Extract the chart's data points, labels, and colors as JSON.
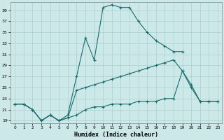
{
  "xlabel": "Humidex (Indice chaleur)",
  "bg_color": "#cce8e8",
  "grid_color": "#aacfcf",
  "line_color": "#1a6b6b",
  "ylim": [
    18.5,
    40.5
  ],
  "xlim": [
    -0.5,
    23.5
  ],
  "yticks": [
    19,
    21,
    23,
    25,
    27,
    29,
    31,
    33,
    35,
    37,
    39
  ],
  "xticks": [
    0,
    1,
    2,
    3,
    4,
    5,
    6,
    7,
    8,
    9,
    10,
    11,
    12,
    13,
    14,
    15,
    16,
    17,
    18,
    19,
    20,
    21,
    22,
    23
  ],
  "curve1_x": [
    0,
    1,
    2,
    3,
    4,
    5,
    6,
    7,
    8,
    9,
    10,
    11,
    12,
    13,
    14,
    15,
    16,
    17,
    18,
    19
  ],
  "curve1_y": [
    22.0,
    22.0,
    21.0,
    19.0,
    20.0,
    19.0,
    20.0,
    27.0,
    34.0,
    30.0,
    39.5,
    40.0,
    39.5,
    39.5,
    37.0,
    35.0,
    33.5,
    32.5,
    31.5,
    31.5
  ],
  "curve2_x": [
    0,
    1,
    2,
    3,
    4,
    5,
    6,
    7,
    8,
    9,
    10,
    11,
    12,
    13,
    14,
    15,
    16,
    17,
    18,
    19,
    20,
    21,
    22,
    23
  ],
  "curve2_y": [
    22.0,
    22.0,
    21.0,
    19.0,
    20.0,
    19.0,
    19.5,
    24.5,
    25.0,
    25.5,
    26.0,
    26.5,
    27.0,
    27.5,
    28.0,
    28.5,
    29.0,
    29.5,
    30.0,
    28.0,
    25.5,
    22.5,
    22.5,
    22.5
  ],
  "curve3_x": [
    0,
    1,
    2,
    3,
    4,
    5,
    6,
    7,
    8,
    9,
    10,
    11,
    12,
    13,
    14,
    15,
    16,
    17,
    18,
    19,
    20,
    21,
    22,
    23
  ],
  "curve3_y": [
    22.0,
    22.0,
    21.0,
    19.0,
    20.0,
    19.0,
    19.5,
    20.0,
    21.0,
    21.5,
    21.5,
    22.0,
    22.0,
    22.0,
    22.5,
    22.5,
    22.5,
    23.0,
    23.0,
    28.0,
    25.0,
    22.5,
    22.5,
    22.5
  ]
}
